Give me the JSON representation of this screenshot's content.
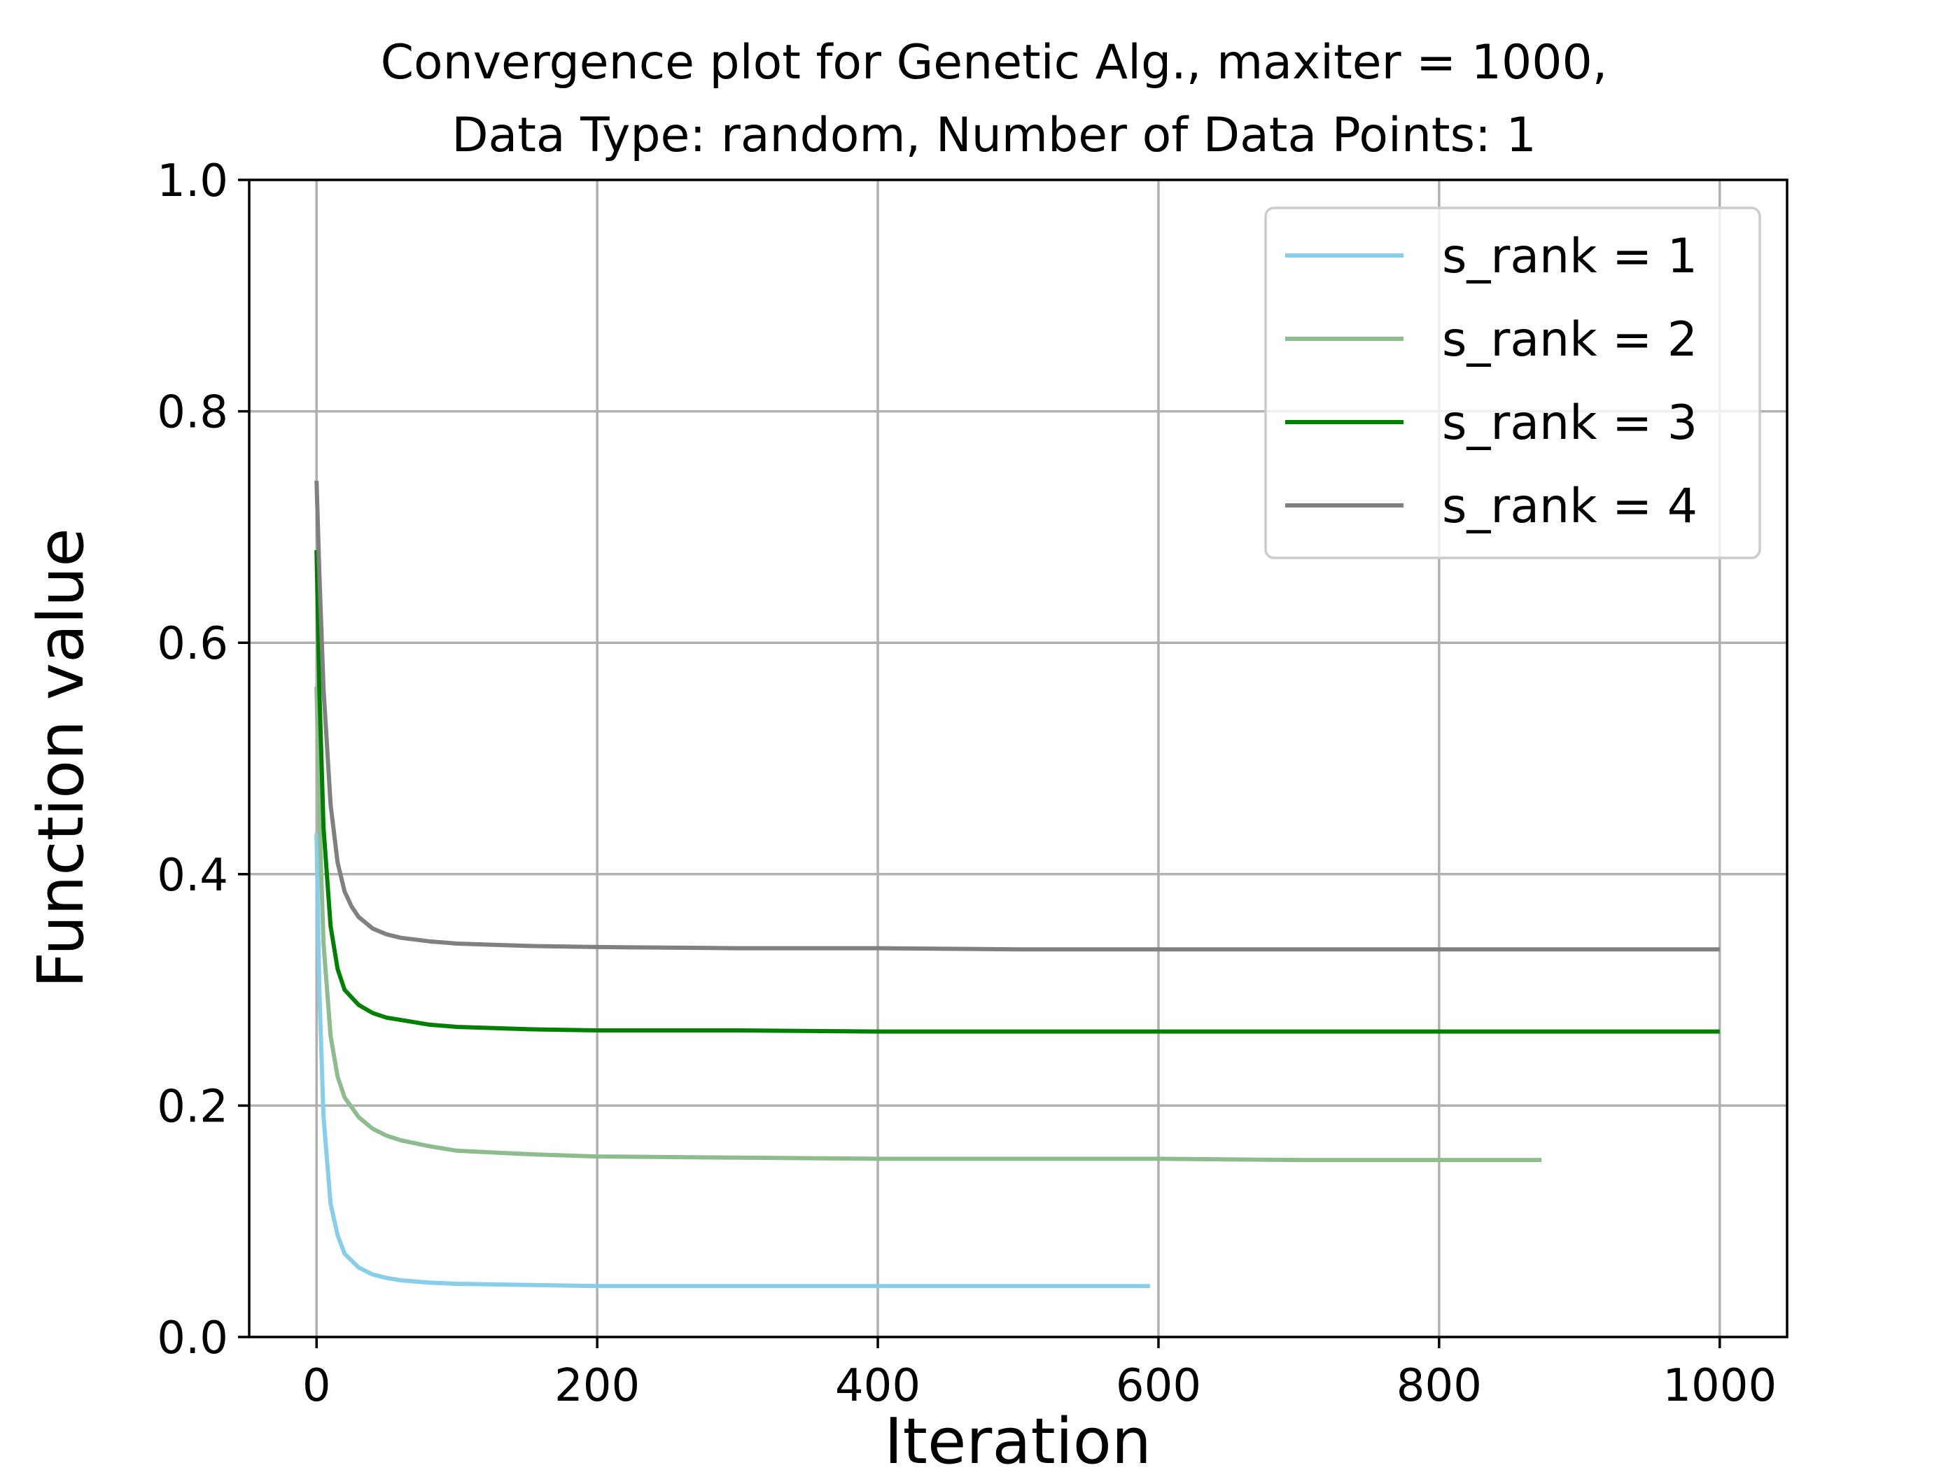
{
  "chart_data": {
    "type": "line",
    "title_lines": [
      "Convergence plot for Genetic Alg., maxiter = 1000,",
      "Data Type: random, Number of Data Points: 1"
    ],
    "xlabel": "Iteration",
    "ylabel": "Function value",
    "xlim": [
      -48,
      1048
    ],
    "ylim": [
      0.0,
      1.0
    ],
    "xticks": [
      0,
      200,
      400,
      600,
      800,
      1000
    ],
    "xtick_labels": [
      "0",
      "200",
      "400",
      "600",
      "800",
      "1000"
    ],
    "yticks": [
      0.0,
      0.2,
      0.4,
      0.6,
      0.8,
      1.0
    ],
    "ytick_labels": [
      "0.0",
      "0.2",
      "0.4",
      "0.6",
      "0.8",
      "1.0"
    ],
    "grid": true,
    "legend_position": "top-right",
    "series": [
      {
        "name": "s_rank = 1",
        "color": "#87ceeb",
        "x": [
          0,
          2,
          5,
          10,
          15,
          20,
          30,
          40,
          50,
          60,
          80,
          100,
          150,
          200,
          300,
          400,
          500,
          594
        ],
        "y": [
          0.435,
          0.3,
          0.19,
          0.115,
          0.088,
          0.072,
          0.06,
          0.054,
          0.051,
          0.049,
          0.047,
          0.046,
          0.045,
          0.044,
          0.044,
          0.044,
          0.044,
          0.044
        ]
      },
      {
        "name": "s_rank = 2",
        "color": "#8fbc8f",
        "x": [
          0,
          2,
          5,
          10,
          15,
          20,
          30,
          40,
          50,
          60,
          80,
          100,
          150,
          200,
          300,
          400,
          500,
          600,
          700,
          800,
          873
        ],
        "y": [
          0.562,
          0.45,
          0.34,
          0.26,
          0.225,
          0.207,
          0.19,
          0.18,
          0.174,
          0.17,
          0.165,
          0.161,
          0.158,
          0.156,
          0.155,
          0.154,
          0.154,
          0.154,
          0.153,
          0.153,
          0.153
        ]
      },
      {
        "name": "s_rank = 3",
        "color": "#008000",
        "x": [
          0,
          2,
          5,
          10,
          15,
          20,
          30,
          40,
          50,
          60,
          80,
          100,
          150,
          200,
          300,
          400,
          500,
          600,
          700,
          800,
          900,
          1000
        ],
        "y": [
          0.68,
          0.56,
          0.44,
          0.355,
          0.318,
          0.3,
          0.287,
          0.28,
          0.276,
          0.274,
          0.27,
          0.268,
          0.266,
          0.265,
          0.265,
          0.264,
          0.264,
          0.264,
          0.264,
          0.264,
          0.264,
          0.264
        ]
      },
      {
        "name": "s_rank = 4",
        "color": "#808080",
        "x": [
          0,
          2,
          5,
          10,
          15,
          20,
          25,
          30,
          40,
          50,
          60,
          80,
          100,
          150,
          200,
          300,
          400,
          500,
          600,
          700,
          800,
          900,
          1000
        ],
        "y": [
          0.74,
          0.66,
          0.56,
          0.46,
          0.41,
          0.385,
          0.372,
          0.363,
          0.353,
          0.348,
          0.345,
          0.342,
          0.34,
          0.338,
          0.337,
          0.336,
          0.336,
          0.335,
          0.335,
          0.335,
          0.335,
          0.335,
          0.335
        ]
      }
    ]
  }
}
